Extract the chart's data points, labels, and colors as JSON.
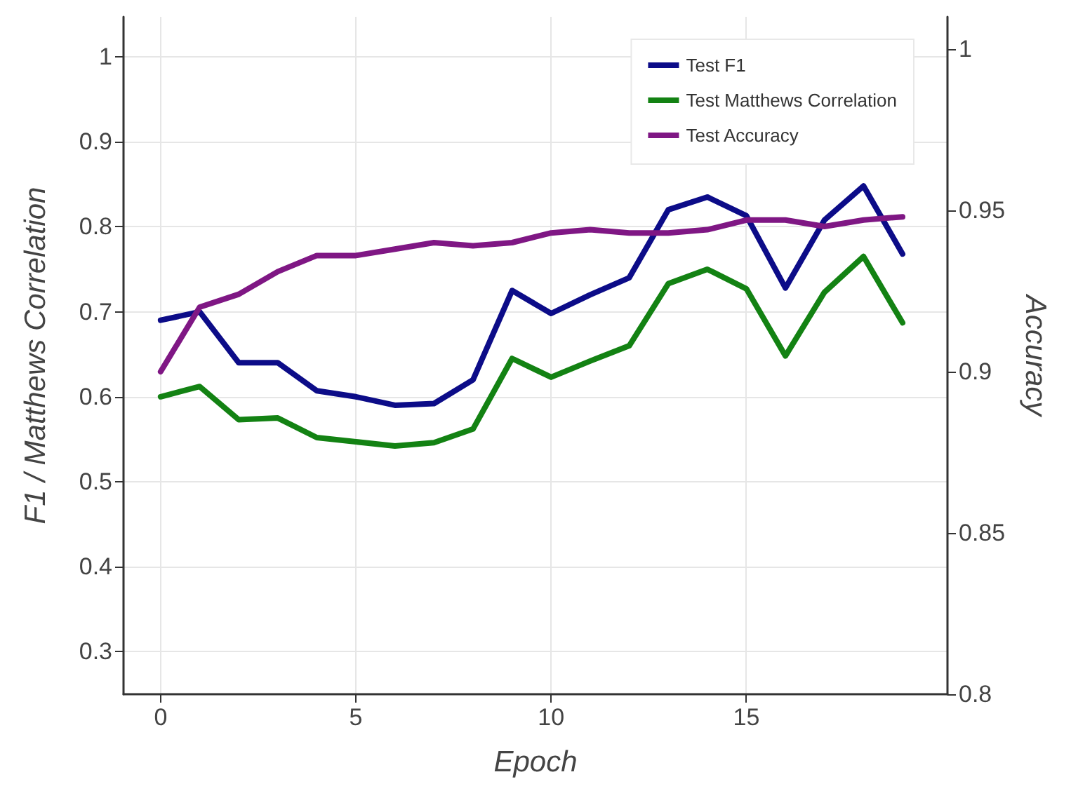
{
  "chart_data": {
    "type": "line",
    "xlabel": "Epoch",
    "ylabel": "F1 / Matthews Correlation",
    "y2label": "Accuracy",
    "x": [
      0,
      1,
      2,
      3,
      4,
      5,
      6,
      7,
      8,
      9,
      10,
      11,
      12,
      13,
      14,
      15,
      16,
      17,
      18,
      19
    ],
    "series": [
      {
        "name": "Test F1",
        "color": "#0c0c88",
        "values": [
          0.69,
          0.7,
          0.64,
          0.64,
          0.607,
          0.6,
          0.59,
          0.592,
          0.62,
          0.725,
          0.698,
          0.72,
          0.74,
          0.82,
          0.835,
          0.813,
          0.728,
          0.808,
          0.848,
          0.768
        ]
      },
      {
        "name": "Test Matthews Correlation",
        "color": "#138213",
        "values": [
          0.6,
          0.612,
          0.573,
          0.575,
          0.552,
          0.547,
          0.542,
          0.546,
          0.562,
          0.645,
          0.623,
          0.642,
          0.66,
          0.733,
          0.75,
          0.727,
          0.648,
          0.723,
          0.765,
          0.687
        ]
      },
      {
        "name": "Test Accuracy",
        "color": "#7f1784",
        "axis": "y2",
        "values": [
          0.9,
          0.92,
          0.924,
          0.931,
          0.936,
          0.936,
          0.938,
          0.94,
          0.939,
          0.94,
          0.943,
          0.944,
          0.943,
          0.943,
          0.944,
          0.947,
          0.947,
          0.945,
          0.947,
          0.948
        ]
      }
    ],
    "xlim": [
      -0.95,
      20.15
    ],
    "xticks": [
      0,
      5,
      10,
      15
    ],
    "ylim": [
      0.25,
      1.047
    ],
    "yticks": [
      0.3,
      0.4,
      0.5,
      0.6,
      0.7,
      0.8,
      0.9,
      1
    ],
    "y2lim": [
      0.8,
      1.01
    ],
    "y2ticks": [
      0.8,
      0.85,
      0.9,
      0.95,
      1
    ],
    "grid": true,
    "legend": "top right",
    "marker": "none",
    "line_style": "solid"
  }
}
